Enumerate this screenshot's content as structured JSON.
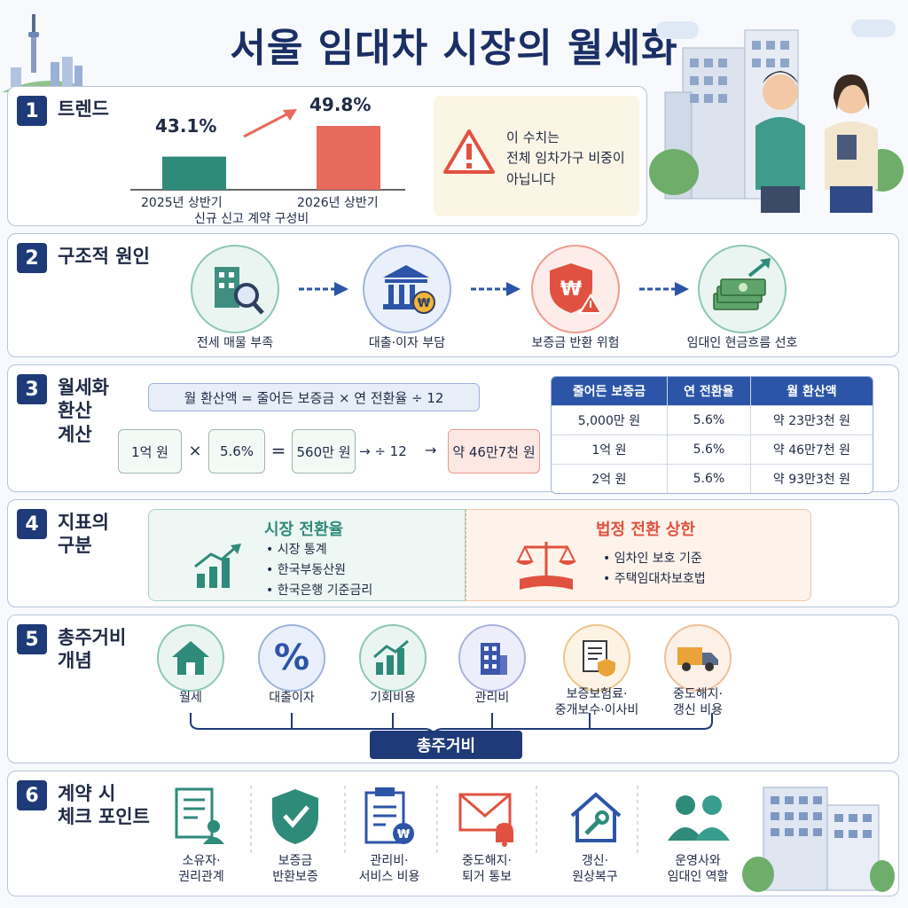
{
  "title": "서울 임대차 시장의 월세화",
  "s1": {
    "num": "1",
    "title": "트렌드",
    "bar1_value": "43.1%",
    "bar1_label": "2025년 상반기",
    "bar1_pct": 43.1,
    "bar2_value": "49.8%",
    "bar2_label": "2026년 상반기",
    "bar2_pct": 49.8,
    "caption": "신규 신고 계약 구성비",
    "warning_line1": "이 수치는",
    "warning_line2": "전체 임차가구 비중이",
    "warning_line3": "아닙니다",
    "colors": {
      "bar1": "#2e8b7a",
      "bar2": "#e76a5c"
    }
  },
  "s2": {
    "num": "2",
    "title": "구조적 원인",
    "items": [
      {
        "label": "전세 매물 부족",
        "icon": "building-search-icon"
      },
      {
        "label": "대출·이자 부담",
        "icon": "bank-won-icon"
      },
      {
        "label": "보증금 반환 위험",
        "icon": "shield-warning-icon"
      },
      {
        "label": "임대인 현금흐름 선호",
        "icon": "cash-growth-icon"
      }
    ]
  },
  "s3": {
    "num": "3",
    "title_l1": "월세화",
    "title_l2": "환산",
    "title_l3": "계산",
    "formula": "월 환산액  =  줄어든 보증금  ×  연 전환율 ÷ 12",
    "ex_a": "1억 원",
    "ex_times": "×",
    "ex_b": "5.6%",
    "ex_eq": "=",
    "ex_c": "560만 원",
    "ex_div": "→ ÷ 12",
    "ex_arrow": "→",
    "ex_result": "약 46만7천 원",
    "table_headers": [
      "줄어든 보증금",
      "연 전환율",
      "월 환산액"
    ],
    "table_rows": [
      [
        "5,000만 원",
        "5.6%",
        "약 23만3천 원"
      ],
      [
        "1억 원",
        "5.6%",
        "약 46만7천 원"
      ],
      [
        "2억 원",
        "5.6%",
        "약 93만3천 원"
      ]
    ]
  },
  "s4": {
    "num": "4",
    "title_l1": "지표의",
    "title_l2": "구분",
    "left_title": "시장 전환율",
    "left_items": [
      "• 시장 통계",
      "• 한국부동산원",
      "• 한국은행 기준금리"
    ],
    "right_title": "법정 전환 상한",
    "right_items": [
      "• 임차인 보호 기준",
      "• 주택임대차보호법"
    ]
  },
  "s5": {
    "num": "5",
    "title_l1": "총주거비",
    "title_l2": "개념",
    "items": [
      {
        "label": "월세",
        "icon": "house-icon"
      },
      {
        "label": "대출이자",
        "icon": "percent-icon"
      },
      {
        "label": "기회비용",
        "icon": "chart-up-icon"
      },
      {
        "label": "관리비",
        "icon": "building-icon"
      },
      {
        "label": "보증보험료·\n중개보수·이사비",
        "icon": "document-shield-icon"
      },
      {
        "label": "중도해지·\n갱신 비용",
        "icon": "truck-icon"
      }
    ],
    "total": "총주거비"
  },
  "s6": {
    "num": "6",
    "title_l1": "계약 시",
    "title_l2": "체크 포인트",
    "items": [
      {
        "label": "소유자·\n권리관계",
        "icon": "document-user-icon"
      },
      {
        "label": "보증금\n반환보증",
        "icon": "shield-check-icon"
      },
      {
        "label": "관리비·\n서비스 비용",
        "icon": "clipboard-won-icon"
      },
      {
        "label": "중도해지·\n퇴거 통보",
        "icon": "mail-bell-icon"
      },
      {
        "label": "갱신·\n원상복구",
        "icon": "house-wrench-icon"
      },
      {
        "label": "운영사와\n임대인 역할",
        "icon": "people-icon"
      }
    ]
  }
}
